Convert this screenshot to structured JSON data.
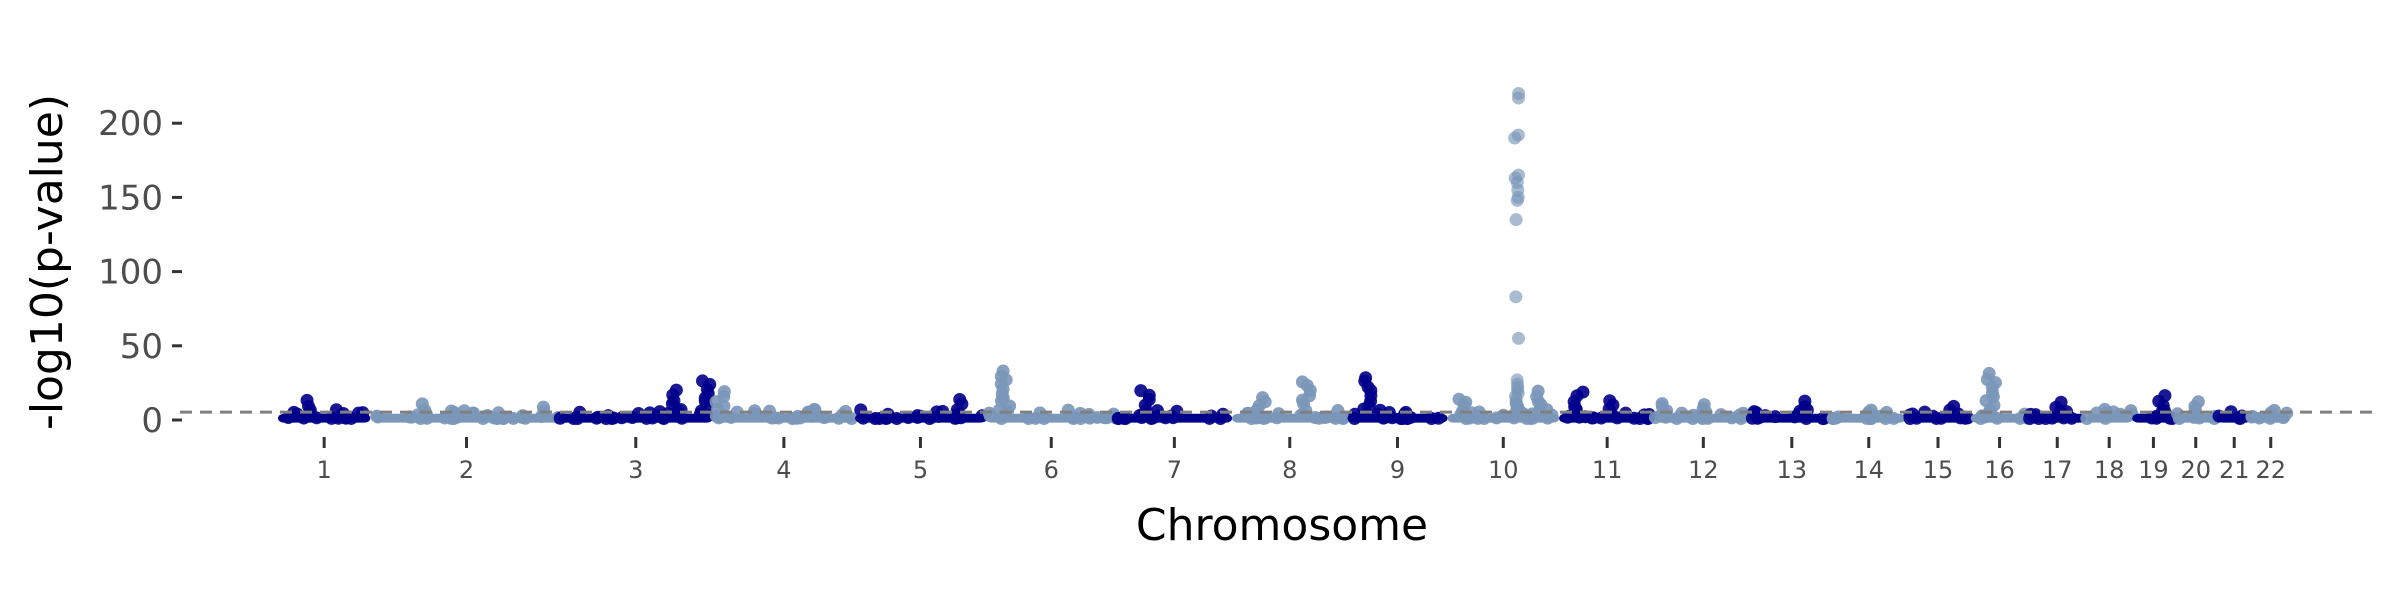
{
  "chart_data": {
    "type": "scatter",
    "subtype": "manhattan",
    "title": "",
    "xlabel": "Chromosome",
    "ylabel": "-log10(p-value)",
    "ylim": [
      -5,
      230
    ],
    "yticks": [
      0,
      50,
      100,
      150,
      200
    ],
    "ytick_labels": [
      "0",
      "50",
      "100",
      "150",
      "200"
    ],
    "threshold": 5.3,
    "threshold_color": "#808080",
    "colors": [
      "#00008B",
      "#7A96B8"
    ],
    "grid": false,
    "legend": "none",
    "chromosomes": [
      {
        "label": "1",
        "start": 0.0,
        "end": 0.048,
        "color_index": 0,
        "peaks": [
          [
            0.35,
            12
          ]
        ]
      },
      {
        "label": "2",
        "start": 0.05,
        "end": 0.146,
        "color_index": 1,
        "peaks": [
          [
            0.25,
            10
          ],
          [
            0.9,
            8
          ]
        ]
      },
      {
        "label": "3",
        "start": 0.146,
        "end": 0.226,
        "color_index": 0,
        "peaks": [
          [
            0.75,
            19
          ],
          [
            0.95,
            26
          ]
        ]
      },
      {
        "label": "4",
        "start": 0.226,
        "end": 0.3,
        "color_index": 1,
        "peaks": [
          [
            0.05,
            18
          ],
          [
            0.7,
            6
          ]
        ]
      },
      {
        "label": "5",
        "start": 0.3,
        "end": 0.368,
        "color_index": 0,
        "peaks": [
          [
            0.8,
            13
          ]
        ]
      },
      {
        "label": "6",
        "start": 0.368,
        "end": 0.436,
        "color_index": 1,
        "peaks": [
          [
            0.15,
            32
          ]
        ]
      },
      {
        "label": "7",
        "start": 0.436,
        "end": 0.496,
        "color_index": 0,
        "peaks": [
          [
            0.25,
            19
          ]
        ]
      },
      {
        "label": "8",
        "start": 0.496,
        "end": 0.556,
        "color_index": 1,
        "peaks": [
          [
            0.25,
            14
          ],
          [
            0.65,
            25
          ]
        ]
      },
      {
        "label": "9",
        "start": 0.556,
        "end": 0.608,
        "color_index": 0,
        "peaks": [
          [
            0.2,
            28
          ]
        ]
      },
      {
        "label": "10",
        "start": 0.608,
        "end": 0.666,
        "color_index": 1,
        "peaks": [
          [
            0.12,
            14
          ],
          [
            0.62,
            220
          ],
          [
            0.8,
            18
          ]
        ]
      },
      {
        "label": "11",
        "start": 0.666,
        "end": 0.716,
        "color_index": 0,
        "peaks": [
          [
            0.2,
            18
          ],
          [
            0.55,
            12
          ]
        ]
      },
      {
        "label": "12",
        "start": 0.716,
        "end": 0.766,
        "color_index": 1,
        "peaks": [
          [
            0.1,
            11
          ],
          [
            0.5,
            10
          ]
        ]
      },
      {
        "label": "13",
        "start": 0.766,
        "end": 0.808,
        "color_index": 0,
        "peaks": [
          [
            0.65,
            12
          ]
        ]
      },
      {
        "label": "14",
        "start": 0.808,
        "end": 0.846,
        "color_index": 1,
        "peaks": [
          [
            0.5,
            6
          ]
        ]
      },
      {
        "label": "15",
        "start": 0.846,
        "end": 0.88,
        "color_index": 0,
        "peaks": [
          [
            0.75,
            9
          ]
        ]
      },
      {
        "label": "16",
        "start": 0.88,
        "end": 0.91,
        "color_index": 1,
        "peaks": [
          [
            0.35,
            30
          ]
        ]
      },
      {
        "label": "17",
        "start": 0.91,
        "end": 0.94,
        "color_index": 0,
        "peaks": [
          [
            0.55,
            11
          ]
        ]
      },
      {
        "label": "18",
        "start": 0.94,
        "end": 0.964,
        "color_index": 1,
        "peaks": [
          [
            0.5,
            6
          ]
        ]
      },
      {
        "label": "19",
        "start": 0.964,
        "end": 0.986,
        "color_index": 0,
        "peaks": [
          [
            0.7,
            15
          ]
        ]
      },
      {
        "label": "20",
        "start": 0.986,
        "end": 1.008,
        "color_index": 1,
        "peaks": [
          [
            0.45,
            12
          ]
        ]
      },
      {
        "label": "21",
        "start": 1.008,
        "end": 1.026,
        "color_index": 0,
        "peaks": []
      },
      {
        "label": "22",
        "start": 1.026,
        "end": 1.046,
        "color_index": 1,
        "peaks": [
          [
            0.5,
            6
          ]
        ]
      }
    ]
  }
}
